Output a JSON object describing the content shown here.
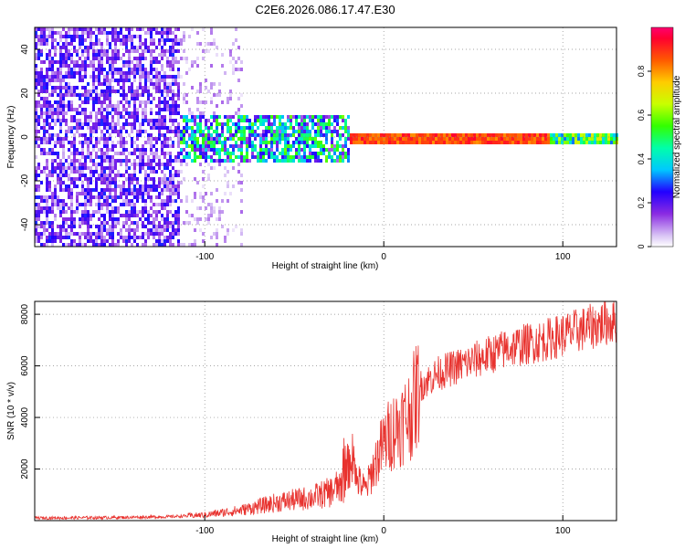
{
  "title": "C2E6.2026.086.17.47.E30",
  "chart_data": [
    {
      "type": "heatmap",
      "panel": "spectrogram",
      "xlabel": "Height of straight line (km)",
      "ylabel": "Frequency (Hz)",
      "xlim": [
        -195,
        130
      ],
      "ylim": [
        -50,
        50
      ],
      "xticks": [
        -100,
        0,
        100
      ],
      "yticks": [
        -40,
        -20,
        0,
        20,
        40
      ],
      "colorbar": {
        "label": "Normalized spectral amplitude",
        "range": [
          0,
          1
        ],
        "ticks": [
          0,
          0.2,
          0.4,
          0.6,
          0.8
        ]
      },
      "regions": [
        {
          "description": "broadband noise",
          "x_range": [
            -195,
            -115
          ],
          "y_range": [
            -50,
            50
          ],
          "amplitude": 0.25
        },
        {
          "description": "sparse noise",
          "x_range": [
            -115,
            -80
          ],
          "y_range": [
            -50,
            50
          ],
          "amplitude": 0.1
        },
        {
          "description": "wide band around 0 Hz",
          "x_range": [
            -115,
            -20
          ],
          "y_range": [
            -10,
            10
          ],
          "amplitude": 0.35
        },
        {
          "description": "narrow band around 0 Hz",
          "x_range": [
            -20,
            92
          ],
          "y_range": [
            -2,
            2
          ],
          "amplitude": 0.95
        },
        {
          "description": "band around 0 Hz",
          "x_range": [
            92,
            130
          ],
          "y_range": [
            -3,
            3
          ],
          "amplitude": 0.5
        }
      ]
    },
    {
      "type": "line",
      "panel": "snr",
      "xlabel": "Height of straight line (km)",
      "ylabel": "SNR (10 * v/v)",
      "xlim": [
        -195,
        130
      ],
      "ylim": [
        0,
        8500
      ],
      "xticks": [
        -100,
        0,
        100
      ],
      "yticks": [
        2000,
        4000,
        6000,
        8000
      ],
      "color": "#e8322e",
      "trend": {
        "x": [
          -195,
          -150,
          -120,
          -100,
          -80,
          -60,
          -40,
          -30,
          -22,
          -18,
          -15,
          -10,
          -5,
          0,
          5,
          10,
          15,
          20,
          30,
          50,
          70,
          90,
          110,
          130
        ],
        "y": [
          100,
          120,
          150,
          220,
          400,
          700,
          900,
          1100,
          1500,
          2500,
          1600,
          1200,
          2200,
          3000,
          3500,
          3800,
          4200,
          5200,
          5700,
          6200,
          6700,
          7000,
          7400,
          7800
        ]
      }
    }
  ]
}
